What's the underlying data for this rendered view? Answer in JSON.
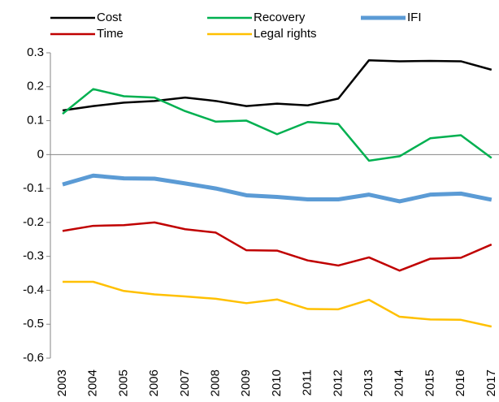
{
  "chart_data": {
    "type": "line",
    "categories": [
      "2003",
      "2004",
      "2005",
      "2006",
      "2007",
      "2008",
      "2009",
      "2010",
      "2011",
      "2012",
      "2013",
      "2014",
      "2015",
      "2016",
      "2017"
    ],
    "ylim": [
      -0.6,
      0.3
    ],
    "yticks": [
      0.3,
      0.2,
      0.1,
      0,
      -0.1,
      -0.2,
      -0.3,
      -0.4,
      -0.5,
      -0.6
    ],
    "series": [
      {
        "name": "Cost",
        "color": "#000000",
        "values": [
          0.13,
          0.143,
          0.153,
          0.158,
          0.168,
          0.158,
          0.143,
          0.15,
          0.145,
          0.165,
          0.278,
          0.275,
          0.276,
          0.275,
          0.25
        ]
      },
      {
        "name": "Recovery",
        "color": "#00b050",
        "values": [
          0.12,
          0.193,
          0.172,
          0.168,
          0.128,
          0.097,
          0.1,
          0.06,
          0.096,
          0.09,
          -0.018,
          -0.005,
          0.048,
          0.057,
          -0.01
        ]
      },
      {
        "name": "IFI",
        "color": "#5b9bd5",
        "values": [
          -0.088,
          -0.062,
          -0.07,
          -0.071,
          -0.085,
          -0.1,
          -0.12,
          -0.125,
          -0.132,
          -0.132,
          -0.118,
          -0.138,
          -0.118,
          -0.115,
          -0.133
        ]
      },
      {
        "name": "Time",
        "color": "#c00000",
        "values": [
          -0.225,
          -0.21,
          -0.208,
          -0.2,
          -0.22,
          -0.23,
          -0.282,
          -0.283,
          -0.312,
          -0.327,
          -0.303,
          -0.342,
          -0.307,
          -0.304,
          -0.265
        ]
      },
      {
        "name": "Legal rights",
        "color": "#ffc000",
        "values": [
          -0.375,
          -0.375,
          -0.402,
          -0.412,
          -0.418,
          -0.425,
          -0.438,
          -0.427,
          -0.455,
          -0.456,
          -0.428,
          -0.478,
          -0.486,
          -0.487,
          -0.507
        ]
      }
    ]
  }
}
